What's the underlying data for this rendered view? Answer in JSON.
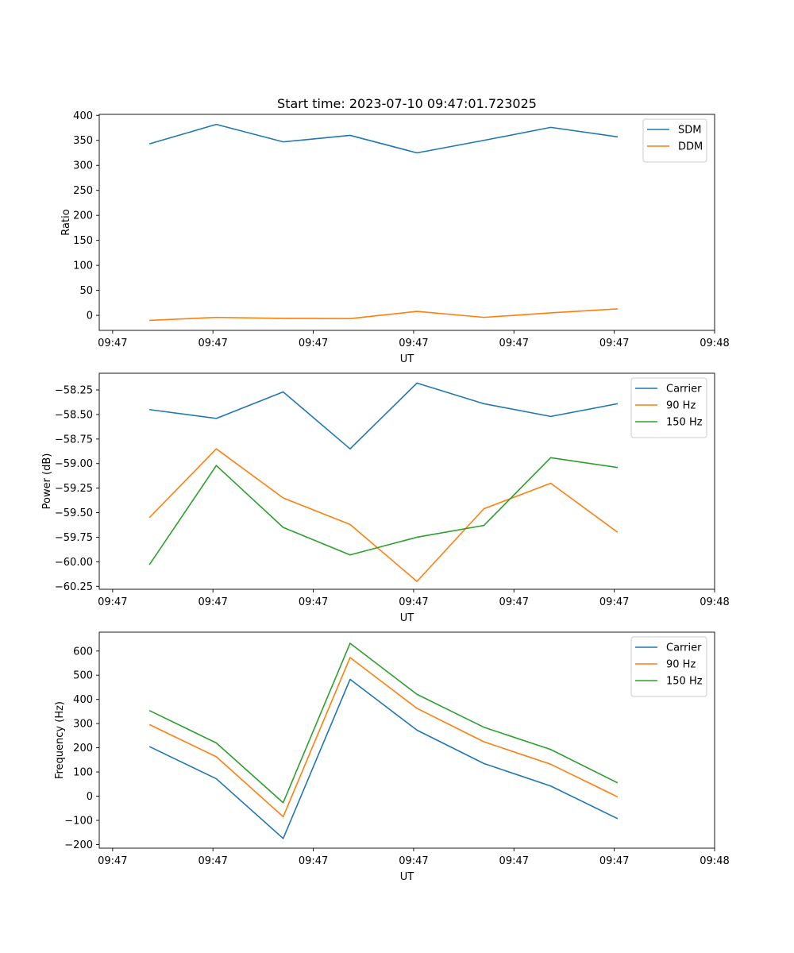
{
  "chart_data": [
    {
      "type": "line",
      "title": "Start time: 2023-07-10 09:47:01.723025",
      "xlabel": "UT",
      "ylabel": "Ratio",
      "x": [
        1,
        2,
        3,
        4,
        5,
        6,
        7,
        8
      ],
      "xlim": [
        0.25,
        9.45
      ],
      "x_ticks": [
        0.45,
        1.95,
        3.45,
        4.95,
        6.45,
        7.95,
        9.45
      ],
      "x_tick_labels": [
        "09:47",
        "09:47",
        "09:47",
        "09:47",
        "09:47",
        "09:47",
        "09:48"
      ],
      "ylim": [
        -30,
        402
      ],
      "y_ticks": [
        0,
        50,
        100,
        150,
        200,
        250,
        300,
        350,
        400
      ],
      "y_tick_labels": [
        "0",
        "50",
        "100",
        "150",
        "200",
        "250",
        "300",
        "350",
        "400"
      ],
      "legend": "top-right",
      "series": [
        {
          "name": "SDM",
          "color": "#1f77b4",
          "values": [
            343,
            382,
            347,
            360,
            325,
            350,
            376,
            357
          ]
        },
        {
          "name": "DDM",
          "color": "#ff7f0e",
          "values": [
            -10,
            -4,
            -6,
            -6.5,
            8,
            -4,
            5,
            13
          ]
        }
      ]
    },
    {
      "type": "line",
      "title": "",
      "xlabel": "UT",
      "ylabel": "Power (dB)",
      "x": [
        1,
        2,
        3,
        4,
        5,
        6,
        7,
        8
      ],
      "xlim": [
        0.25,
        9.45
      ],
      "x_ticks": [
        0.45,
        1.95,
        3.45,
        4.95,
        6.45,
        7.95,
        9.45
      ],
      "x_tick_labels": [
        "09:47",
        "09:47",
        "09:47",
        "09:47",
        "09:47",
        "09:47",
        "09:48"
      ],
      "ylim": [
        -60.28,
        -58.08
      ],
      "y_ticks": [
        -60.25,
        -60.0,
        -59.75,
        -59.5,
        -59.25,
        -59.0,
        -58.75,
        -58.5,
        -58.25
      ],
      "y_tick_labels": [
        "−60.25",
        "−60.00",
        "−59.75",
        "−59.50",
        "−59.25",
        "−59.00",
        "−58.75",
        "−58.50",
        "−58.25"
      ],
      "legend": "top-right",
      "series": [
        {
          "name": "Carrier",
          "color": "#1f77b4",
          "values": [
            -58.45,
            -58.54,
            -58.27,
            -58.85,
            -58.18,
            -58.39,
            -58.52,
            -58.39
          ]
        },
        {
          "name": "90 Hz",
          "color": "#ff7f0e",
          "values": [
            -59.55,
            -58.85,
            -59.35,
            -59.62,
            -60.2,
            -59.46,
            -59.2,
            -59.7
          ]
        },
        {
          "name": "150 Hz",
          "color": "#2ca02c",
          "values": [
            -60.03,
            -59.02,
            -59.65,
            -59.93,
            -59.75,
            -59.63,
            -58.94,
            -59.04
          ]
        }
      ]
    },
    {
      "type": "line",
      "title": "",
      "xlabel": "UT",
      "ylabel": "Frequency (Hz)",
      "x": [
        1,
        2,
        3,
        4,
        5,
        6,
        7,
        8
      ],
      "xlim": [
        0.25,
        9.45
      ],
      "x_ticks": [
        0.45,
        1.95,
        3.45,
        4.95,
        6.45,
        7.95,
        9.45
      ],
      "x_tick_labels": [
        "09:47",
        "09:47",
        "09:47",
        "09:47",
        "09:47",
        "09:47",
        "09:48"
      ],
      "ylim": [
        -215,
        678
      ],
      "y_ticks": [
        -200,
        -100,
        0,
        100,
        200,
        300,
        400,
        500,
        600
      ],
      "y_tick_labels": [
        "−200",
        "−100",
        "0",
        "100",
        "200",
        "300",
        "400",
        "500",
        "600"
      ],
      "legend": "top-right",
      "series": [
        {
          "name": "Carrier",
          "color": "#1f77b4",
          "values": [
            205,
            72,
            -175,
            483,
            273,
            135,
            42,
            -93
          ]
        },
        {
          "name": "90 Hz",
          "color": "#ff7f0e",
          "values": [
            296,
            163,
            -85,
            573,
            363,
            225,
            132,
            -3
          ]
        },
        {
          "name": "150 Hz",
          "color": "#2ca02c",
          "values": [
            354,
            220,
            -27,
            632,
            421,
            285,
            193,
            55
          ]
        }
      ]
    }
  ]
}
